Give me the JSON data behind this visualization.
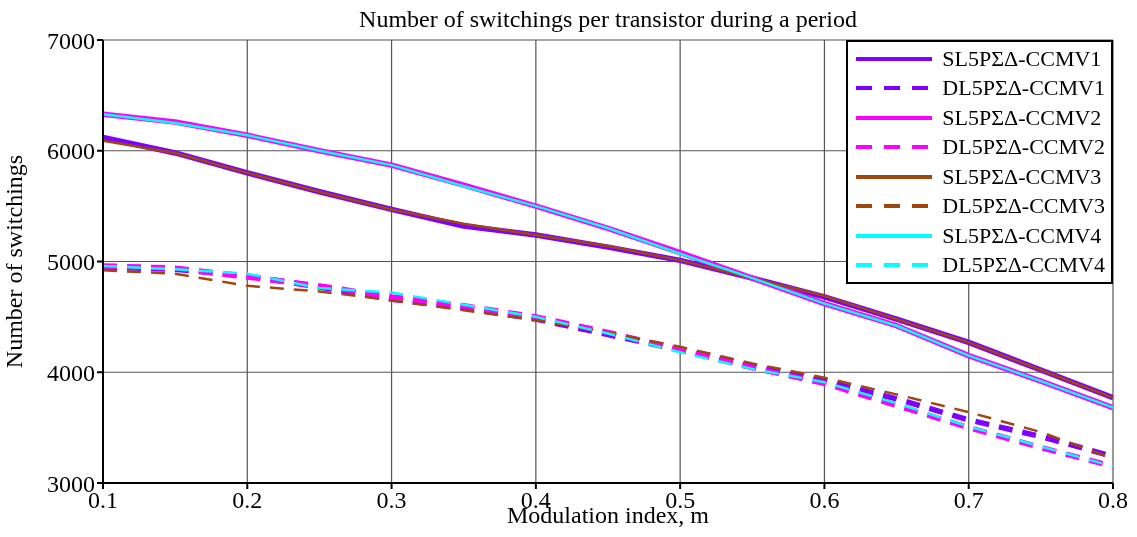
{
  "chart_data": {
    "type": "line",
    "title": "Number of switchings per transistor during a period",
    "xlabel": "Modulation index, m",
    "ylabel": "Number of switchings",
    "x": [
      0.1,
      0.15,
      0.2,
      0.25,
      0.3,
      0.35,
      0.4,
      0.45,
      0.5,
      0.55,
      0.6,
      0.65,
      0.7,
      0.75,
      0.8
    ],
    "series": [
      {
        "name": "SL5PΣΔ-CCMV1",
        "color": "#7f00ff",
        "line_style": "solid",
        "values": [
          6120,
          5980,
          5800,
          5630,
          5470,
          5320,
          5240,
          5130,
          5010,
          4850,
          4680,
          4480,
          4270,
          4020,
          3770
        ]
      },
      {
        "name": "DL5PΣΔ-CCMV1",
        "color": "#7f00ff",
        "line_style": "dashed",
        "values": [
          4950,
          4930,
          4870,
          4770,
          4660,
          4580,
          4480,
          4340,
          4200,
          4050,
          3920,
          3760,
          3570,
          3420,
          3240
        ]
      },
      {
        "name": "SL5PΣΔ-CCMV2",
        "color": "#ff00ff",
        "line_style": "solid",
        "values": [
          6330,
          6260,
          6140,
          6000,
          5870,
          5690,
          5500,
          5300,
          5080,
          4850,
          4620,
          4420,
          4150,
          3920,
          3680
        ]
      },
      {
        "name": "DL5PΣΔ-CCMV2",
        "color": "#ff00ff",
        "line_style": "dashed",
        "values": [
          4960,
          4940,
          4860,
          4780,
          4680,
          4600,
          4500,
          4360,
          4200,
          4040,
          3900,
          3700,
          3500,
          3320,
          3150
        ]
      },
      {
        "name": "SL5PΣΔ-CCMV3",
        "color": "#a0460f",
        "line_style": "solid",
        "values": [
          6090,
          5980,
          5800,
          5630,
          5470,
          5340,
          5240,
          5140,
          5010,
          4850,
          4690,
          4480,
          4270,
          4020,
          3770
        ]
      },
      {
        "name": "DL5PΣΔ-CCMV3",
        "color": "#a0460f",
        "line_style": "dashed",
        "values": [
          4920,
          4890,
          4780,
          4730,
          4650,
          4560,
          4470,
          4360,
          4230,
          4080,
          3950,
          3800,
          3640,
          3460,
          3220
        ]
      },
      {
        "name": "SL5PΣΔ-CCMV4",
        "color": "#00ffff",
        "line_style": "solid",
        "values": [
          6330,
          6250,
          6140,
          6000,
          5870,
          5680,
          5500,
          5300,
          5070,
          4850,
          4620,
          4420,
          4150,
          3920,
          3680
        ]
      },
      {
        "name": "DL5PΣΔ-CCMV4",
        "color": "#00ffff",
        "line_style": "dashed",
        "values": [
          4960,
          4930,
          4890,
          4760,
          4720,
          4610,
          4500,
          4350,
          4180,
          4030,
          3910,
          3720,
          3510,
          3330,
          3150
        ]
      }
    ],
    "xlim": [
      0.1,
      0.8
    ],
    "xticks": [
      0.1,
      0.2,
      0.3,
      0.4,
      0.5,
      0.6,
      0.7,
      0.8
    ],
    "ylim": [
      3000,
      7000
    ],
    "yticks": [
      3000,
      4000,
      5000,
      6000,
      7000
    ],
    "grid": true,
    "legend": "top right",
    "marker": "none"
  }
}
